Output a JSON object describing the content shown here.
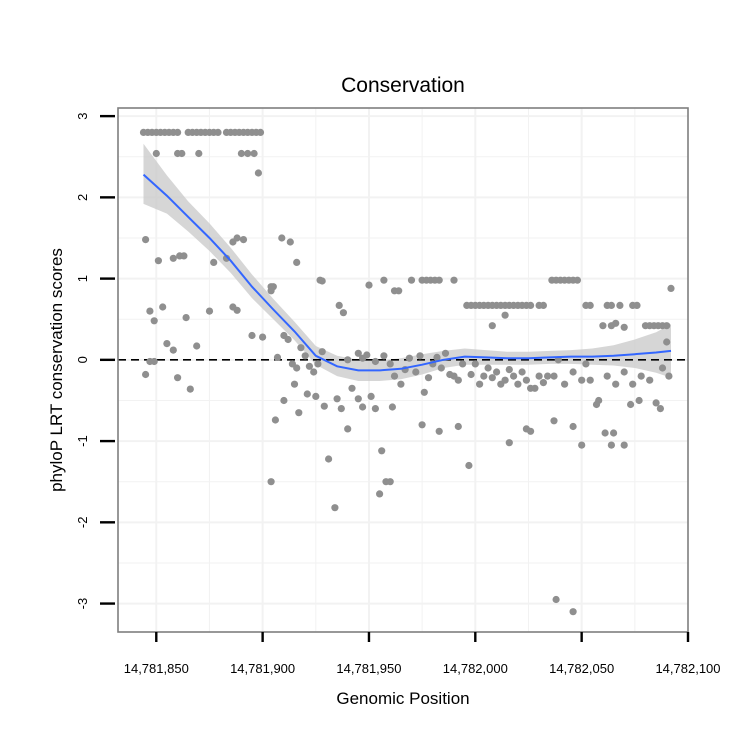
{
  "chart_data": {
    "type": "scatter",
    "title": "Conservation",
    "xlabel": "Genomic Position",
    "ylabel": "phyloP LRT conservation scores",
    "xlim": [
      14781832,
      14782100
    ],
    "ylim": [
      -3.35,
      3.1
    ],
    "x_ticks": [
      14781850,
      14781900,
      14781950,
      14782000,
      14782050,
      14782100
    ],
    "x_tick_labels": [
      "14,781,850",
      "14,781,900",
      "14,781,950",
      "14,782,000",
      "14,782,050",
      "14,782,100"
    ],
    "y_ticks": [
      -3,
      -2,
      -1,
      0,
      1,
      2,
      3
    ],
    "y_tick_labels": [
      "-3",
      "-2",
      "-1",
      "0",
      "1",
      "2",
      "3"
    ],
    "grid": true,
    "reference_line": {
      "y": 0,
      "style": "dashed"
    },
    "colors": {
      "points": "#8f8f8f",
      "smooth": "#3366ff",
      "ribbon": "#c8c8c8",
      "grid": "#f2f2f2",
      "frame": "#7f7f7f",
      "reference": "#000000"
    },
    "series": [
      {
        "name": "phyloP scores",
        "kind": "points",
        "points": [
          [
            14781844,
            2.8
          ],
          [
            14781846,
            2.8
          ],
          [
            14781848,
            2.8
          ],
          [
            14781850,
            2.8
          ],
          [
            14781852,
            2.8
          ],
          [
            14781854,
            2.8
          ],
          [
            14781856,
            2.8
          ],
          [
            14781858,
            2.8
          ],
          [
            14781860,
            2.8
          ],
          [
            14781865,
            2.8
          ],
          [
            14781867,
            2.8
          ],
          [
            14781869,
            2.8
          ],
          [
            14781871,
            2.8
          ],
          [
            14781873,
            2.8
          ],
          [
            14781875,
            2.8
          ],
          [
            14781877,
            2.8
          ],
          [
            14781879,
            2.8
          ],
          [
            14781883,
            2.8
          ],
          [
            14781885,
            2.8
          ],
          [
            14781887,
            2.8
          ],
          [
            14781889,
            2.8
          ],
          [
            14781891,
            2.8
          ],
          [
            14781893,
            2.8
          ],
          [
            14781895,
            2.8
          ],
          [
            14781897,
            2.8
          ],
          [
            14781899,
            2.8
          ],
          [
            14781850,
            2.54
          ],
          [
            14781860,
            2.54
          ],
          [
            14781862,
            2.54
          ],
          [
            14781870,
            2.54
          ],
          [
            14781890,
            2.54
          ],
          [
            14781893,
            2.54
          ],
          [
            14781896,
            2.54
          ],
          [
            14781898,
            2.3
          ],
          [
            14781845,
            1.48
          ],
          [
            14781851,
            1.22
          ],
          [
            14781858,
            1.25
          ],
          [
            14781861,
            1.28
          ],
          [
            14781863,
            1.28
          ],
          [
            14781877,
            1.2
          ],
          [
            14781883,
            1.25
          ],
          [
            14781886,
            1.45
          ],
          [
            14781888,
            1.5
          ],
          [
            14781891,
            1.48
          ],
          [
            14781905,
            0.9
          ],
          [
            14781904,
            0.85
          ],
          [
            14781909,
            1.5
          ],
          [
            14781913,
            1.45
          ],
          [
            14781916,
            1.2
          ],
          [
            14781847,
            0.6
          ],
          [
            14781853,
            0.65
          ],
          [
            14781849,
            0.48
          ],
          [
            14781855,
            0.2
          ],
          [
            14781858,
            0.12
          ],
          [
            14781864,
            0.52
          ],
          [
            14781869,
            0.17
          ],
          [
            14781875,
            0.6
          ],
          [
            14781886,
            0.65
          ],
          [
            14781888,
            0.61
          ],
          [
            14781895,
            0.3
          ],
          [
            14781900,
            0.28
          ],
          [
            14781904,
            0.9
          ],
          [
            14781845,
            -0.18
          ],
          [
            14781847,
            -0.02
          ],
          [
            14781849,
            -0.02
          ],
          [
            14781860,
            -0.22
          ],
          [
            14781866,
            -0.36
          ],
          [
            14781907,
            0.03
          ],
          [
            14781910,
            0.3
          ],
          [
            14781912,
            0.25
          ],
          [
            14781914,
            -0.05
          ],
          [
            14781916,
            -0.1
          ],
          [
            14781918,
            0.15
          ],
          [
            14781920,
            0.05
          ],
          [
            14781922,
            -0.08
          ],
          [
            14781924,
            -0.15
          ],
          [
            14781926,
            -0.05
          ],
          [
            14781928,
            0.1
          ],
          [
            14781904,
            -1.5
          ],
          [
            14781906,
            -0.74
          ],
          [
            14781910,
            -0.5
          ],
          [
            14781915,
            -0.3
          ],
          [
            14781917,
            -0.65
          ],
          [
            14781921,
            -0.42
          ],
          [
            14781925,
            -0.45
          ],
          [
            14781929,
            -0.57
          ],
          [
            14781927,
            0.98
          ],
          [
            14781928,
            0.97
          ],
          [
            14781936,
            0.67
          ],
          [
            14781938,
            0.58
          ],
          [
            14781940,
            0.0
          ],
          [
            14781942,
            -0.35
          ],
          [
            14781945,
            0.08
          ],
          [
            14781947,
            0.02
          ],
          [
            14781949,
            0.06
          ],
          [
            14781953,
            -0.02
          ],
          [
            14781931,
            -1.22
          ],
          [
            14781934,
            -1.82
          ],
          [
            14781935,
            -0.48
          ],
          [
            14781937,
            -0.6
          ],
          [
            14781940,
            -0.85
          ],
          [
            14781945,
            -0.48
          ],
          [
            14781947,
            -0.58
          ],
          [
            14781951,
            -0.45
          ],
          [
            14781953,
            -0.6
          ],
          [
            14781955,
            -1.65
          ],
          [
            14781956,
            -1.12
          ],
          [
            14781958,
            -1.5
          ],
          [
            14781960,
            -1.5
          ],
          [
            14781961,
            -0.58
          ],
          [
            14781950,
            0.92
          ],
          [
            14781957,
            0.98
          ],
          [
            14781962,
            0.85
          ],
          [
            14781964,
            0.85
          ],
          [
            14781970,
            0.98
          ],
          [
            14781975,
            0.98
          ],
          [
            14781977,
            0.98
          ],
          [
            14781979,
            0.98
          ],
          [
            14781981,
            0.98
          ],
          [
            14781983,
            0.98
          ],
          [
            14781990,
            0.98
          ],
          [
            14781957,
            0.05
          ],
          [
            14781960,
            -0.05
          ],
          [
            14781962,
            -0.2
          ],
          [
            14781965,
            -0.3
          ],
          [
            14781967,
            -0.12
          ],
          [
            14781969,
            0.02
          ],
          [
            14781972,
            -0.15
          ],
          [
            14781974,
            0.05
          ],
          [
            14781976,
            -0.4
          ],
          [
            14781978,
            -0.22
          ],
          [
            14781980,
            -0.05
          ],
          [
            14781982,
            0.03
          ],
          [
            14781984,
            -0.1
          ],
          [
            14781986,
            0.08
          ],
          [
            14781988,
            -0.18
          ],
          [
            14781990,
            -0.2
          ],
          [
            14781992,
            -0.25
          ],
          [
            14781994,
            -0.05
          ],
          [
            14781975,
            -0.8
          ],
          [
            14781983,
            -0.88
          ],
          [
            14781992,
            -0.82
          ],
          [
            14781997,
            -1.3
          ],
          [
            14781996,
            0.67
          ],
          [
            14781998,
            0.67
          ],
          [
            14782000,
            0.67
          ],
          [
            14782002,
            0.67
          ],
          [
            14782004,
            0.67
          ],
          [
            14782006,
            0.67
          ],
          [
            14782008,
            0.67
          ],
          [
            14782010,
            0.67
          ],
          [
            14782012,
            0.67
          ],
          [
            14782014,
            0.67
          ],
          [
            14782016,
            0.67
          ],
          [
            14782018,
            0.67
          ],
          [
            14782020,
            0.67
          ],
          [
            14782022,
            0.67
          ],
          [
            14782024,
            0.67
          ],
          [
            14782026,
            0.67
          ],
          [
            14782030,
            0.67
          ],
          [
            14782032,
            0.67
          ],
          [
            14782008,
            0.42
          ],
          [
            14782014,
            0.55
          ],
          [
            14781998,
            -0.18
          ],
          [
            14782000,
            -0.05
          ],
          [
            14782002,
            -0.3
          ],
          [
            14782004,
            -0.2
          ],
          [
            14782006,
            -0.1
          ],
          [
            14782008,
            -0.22
          ],
          [
            14782010,
            -0.15
          ],
          [
            14782012,
            -0.3
          ],
          [
            14782014,
            -0.25
          ],
          [
            14782016,
            -0.12
          ],
          [
            14782018,
            -0.2
          ],
          [
            14782020,
            -0.3
          ],
          [
            14782022,
            -0.15
          ],
          [
            14782024,
            -0.25
          ],
          [
            14782026,
            -0.35
          ],
          [
            14782028,
            -0.35
          ],
          [
            14782030,
            -0.2
          ],
          [
            14782032,
            -0.28
          ],
          [
            14782034,
            -0.2
          ],
          [
            14782016,
            -1.02
          ],
          [
            14782024,
            -0.85
          ],
          [
            14782026,
            -0.88
          ],
          [
            14782036,
            0.98
          ],
          [
            14782038,
            0.98
          ],
          [
            14782040,
            0.98
          ],
          [
            14782042,
            0.98
          ],
          [
            14782044,
            0.98
          ],
          [
            14782046,
            0.98
          ],
          [
            14782048,
            0.98
          ],
          [
            14782052,
            0.67
          ],
          [
            14782054,
            0.67
          ],
          [
            14782062,
            0.67
          ],
          [
            14782064,
            0.67
          ],
          [
            14782068,
            0.67
          ],
          [
            14782074,
            0.67
          ],
          [
            14782076,
            0.67
          ],
          [
            14782060,
            0.42
          ],
          [
            14782064,
            0.42
          ],
          [
            14782066,
            0.45
          ],
          [
            14782070,
            0.4
          ],
          [
            14782080,
            0.42
          ],
          [
            14782082,
            0.42
          ],
          [
            14782084,
            0.42
          ],
          [
            14782086,
            0.42
          ],
          [
            14782088,
            0.42
          ],
          [
            14782090,
            0.42
          ],
          [
            14782037,
            -0.2
          ],
          [
            14782039,
            0.0
          ],
          [
            14782042,
            -0.3
          ],
          [
            14782046,
            -0.15
          ],
          [
            14782050,
            -0.25
          ],
          [
            14782052,
            -0.05
          ],
          [
            14782054,
            -0.25
          ],
          [
            14782058,
            -0.5
          ],
          [
            14782062,
            -0.2
          ],
          [
            14782066,
            -0.3
          ],
          [
            14782070,
            -0.15
          ],
          [
            14782074,
            -0.3
          ],
          [
            14782078,
            -0.2
          ],
          [
            14782082,
            -0.25
          ],
          [
            14782088,
            -0.1
          ],
          [
            14782090,
            0.22
          ],
          [
            14782091,
            -0.2
          ],
          [
            14782092,
            0.88
          ],
          [
            14782037,
            -0.75
          ],
          [
            14782046,
            -0.82
          ],
          [
            14782050,
            -1.05
          ],
          [
            14782057,
            -0.55
          ],
          [
            14782061,
            -0.9
          ],
          [
            14782064,
            -1.05
          ],
          [
            14782065,
            -0.9
          ],
          [
            14782070,
            -1.05
          ],
          [
            14782073,
            -0.55
          ],
          [
            14782077,
            -0.5
          ],
          [
            14782085,
            -0.53
          ],
          [
            14782087,
            -0.6
          ],
          [
            14782038,
            -2.95
          ],
          [
            14782046,
            -3.1
          ]
        ]
      },
      {
        "name": "LOESS smooth",
        "kind": "line",
        "x": [
          14781844,
          14781855,
          14781865,
          14781875,
          14781885,
          14781895,
          14781905,
          14781915,
          14781925,
          14781935,
          14781945,
          14781955,
          14781965,
          14781975,
          14781985,
          14781995,
          14782005,
          14782015,
          14782025,
          14782035,
          14782045,
          14782055,
          14782065,
          14782075,
          14782085,
          14782092
        ],
        "y": [
          2.28,
          2.02,
          1.76,
          1.5,
          1.22,
          0.9,
          0.62,
          0.35,
          0.05,
          -0.08,
          -0.13,
          -0.13,
          -0.11,
          -0.06,
          0.0,
          0.04,
          0.03,
          0.02,
          0.02,
          0.03,
          0.04,
          0.04,
          0.05,
          0.07,
          0.09,
          0.11
        ],
        "ci_lower": [
          1.92,
          1.8,
          1.58,
          1.34,
          1.07,
          0.76,
          0.5,
          0.24,
          -0.06,
          -0.2,
          -0.26,
          -0.26,
          -0.24,
          -0.18,
          -0.1,
          -0.06,
          -0.06,
          -0.06,
          -0.06,
          -0.05,
          -0.05,
          -0.06,
          -0.07,
          -0.1,
          -0.16,
          -0.22
        ],
        "ci_upper": [
          2.66,
          2.27,
          1.95,
          1.68,
          1.38,
          1.05,
          0.75,
          0.47,
          0.17,
          0.05,
          0.0,
          -0.01,
          0.02,
          0.07,
          0.11,
          0.14,
          0.12,
          0.1,
          0.1,
          0.11,
          0.12,
          0.14,
          0.18,
          0.25,
          0.34,
          0.44
        ]
      }
    ]
  }
}
